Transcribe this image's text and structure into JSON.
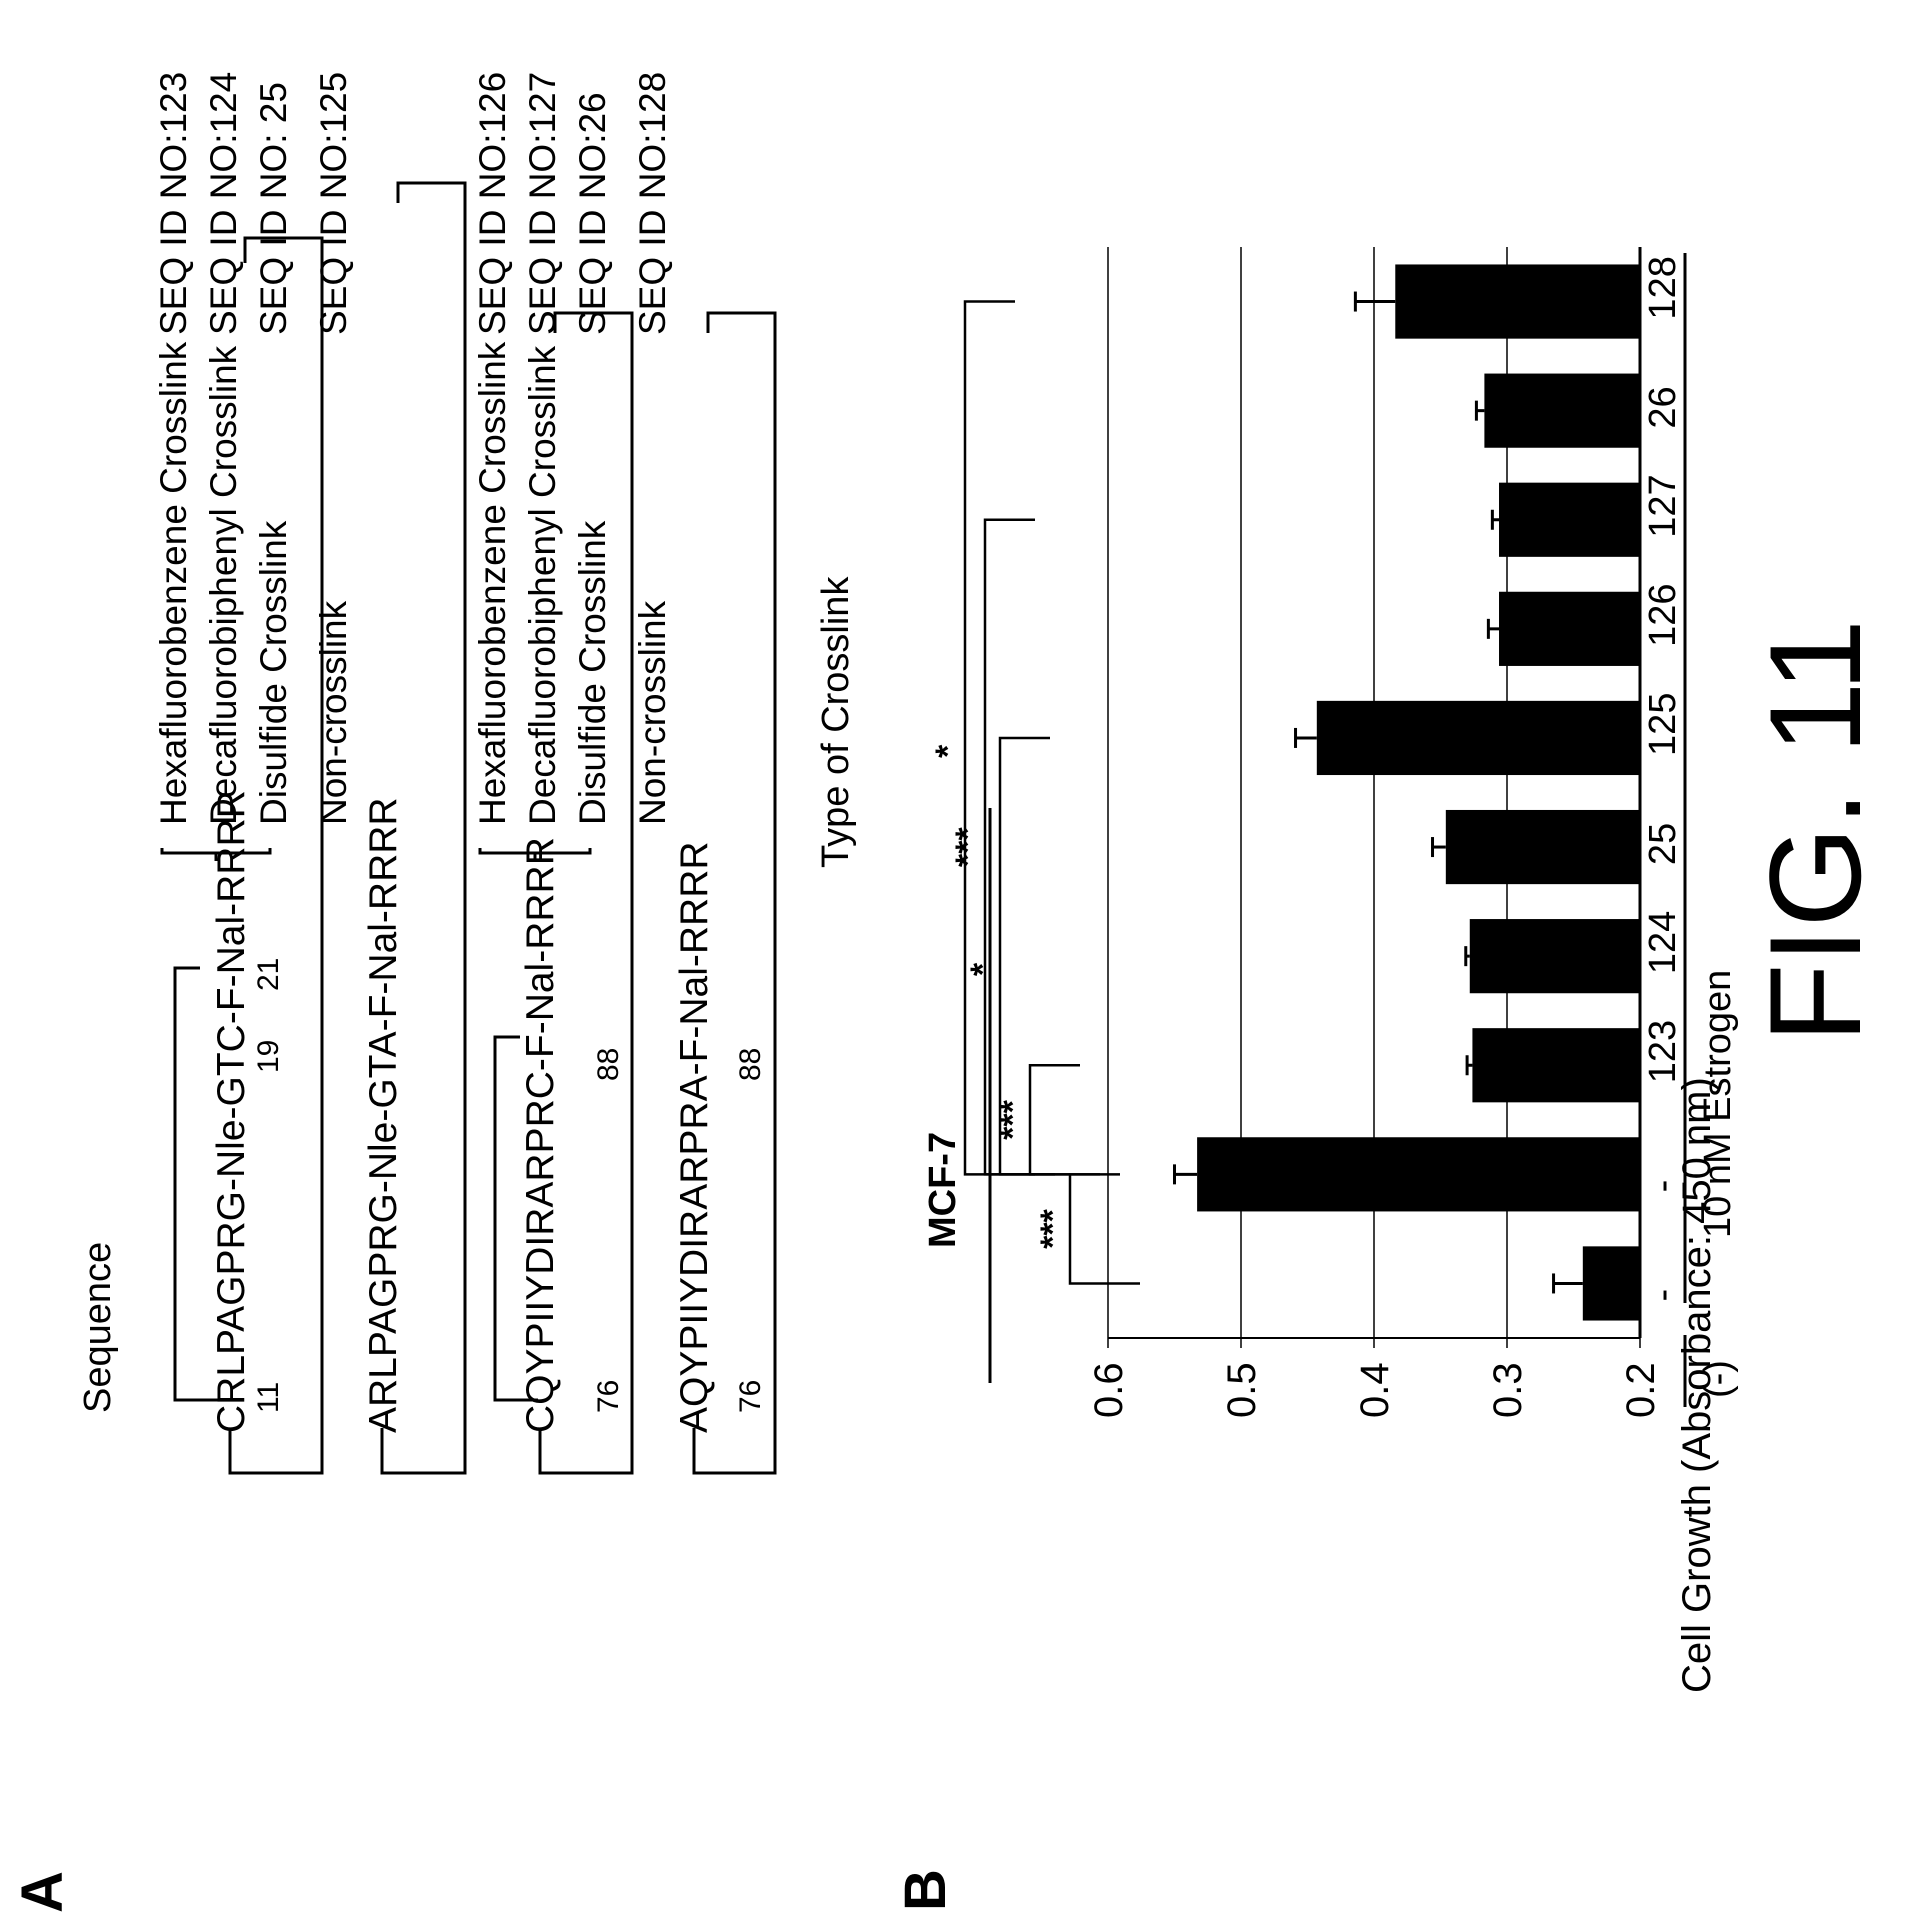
{
  "figure": {
    "caption": "FIG. 11",
    "panel_a": {
      "letter": "A",
      "sequence_header": "Sequence",
      "type_header": "Type of Crosslink",
      "peptides": [
        {
          "sequence": "CRLPAGPRG-Nle-GTC-F-Nal-RRRR",
          "positions": [
            "11",
            "19",
            "21"
          ]
        },
        {
          "sequence": "ARLPAGPRG-Nle-GTA-F-Nal-RRRR",
          "positions": []
        },
        {
          "sequence": "CQYPIIYDIRARPRC-F-Nal-RRRR",
          "positions": [
            "76",
            "88"
          ]
        },
        {
          "sequence": "AQYPIIYDIRARPRA-F-Nal-RRRR",
          "positions": [
            "76",
            "88"
          ]
        }
      ],
      "crosslinks": [
        {
          "type": "Hexafluorobenzene Crosslink",
          "seq_id": "SEQ ID NO:123"
        },
        {
          "type": "Decafluorobiphenyl Crosslink",
          "seq_id": "SEQ ID NO:124"
        },
        {
          "type": "Disulfide Crosslink",
          "seq_id": "SEQ ID NO: 25"
        },
        {
          "type": "Non-crosslink",
          "seq_id": "SEQ ID NO:125"
        },
        {
          "type": "Hexafluorobenzene Crosslink",
          "seq_id": "SEQ ID NO:126"
        },
        {
          "type": "Decafluorobiphenyl Crosslink",
          "seq_id": "SEQ ID NO:127"
        },
        {
          "type": "Disulfide Crosslink",
          "seq_id": "SEQ ID NO:26"
        },
        {
          "type": "Non-crosslink",
          "seq_id": "SEQ ID NO:128"
        }
      ]
    },
    "panel_b": {
      "letter": "B",
      "group_label_neg": "(-)",
      "group_label_estrogen": "10 nM Estrogen",
      "significance": [
        {
          "label": "***"
        },
        {
          "label": "***"
        },
        {
          "label": "*"
        },
        {
          "label": "***"
        },
        {
          "label": "*"
        }
      ]
    }
  },
  "chart_data": {
    "type": "bar",
    "title": "MCF-7",
    "ylabel": "Cell Growth (Absorbance: 450 nm)",
    "ylim": [
      0.2,
      0.6
    ],
    "yticks": [
      "0.2",
      "0.3",
      "0.4",
      "0.5",
      "0.6"
    ],
    "categories": [
      "-",
      "-",
      "123",
      "124",
      "25",
      "125",
      "126",
      "127",
      "26",
      "128"
    ],
    "values": [
      0.243,
      0.533,
      0.326,
      0.328,
      0.346,
      0.443,
      0.306,
      0.306,
      0.317,
      0.384
    ],
    "errors": [
      0.022,
      0.017,
      0.004,
      0.003,
      0.01,
      0.016,
      0.008,
      0.005,
      0.006,
      0.03
    ],
    "grid": true,
    "bar_color": "#000000"
  }
}
